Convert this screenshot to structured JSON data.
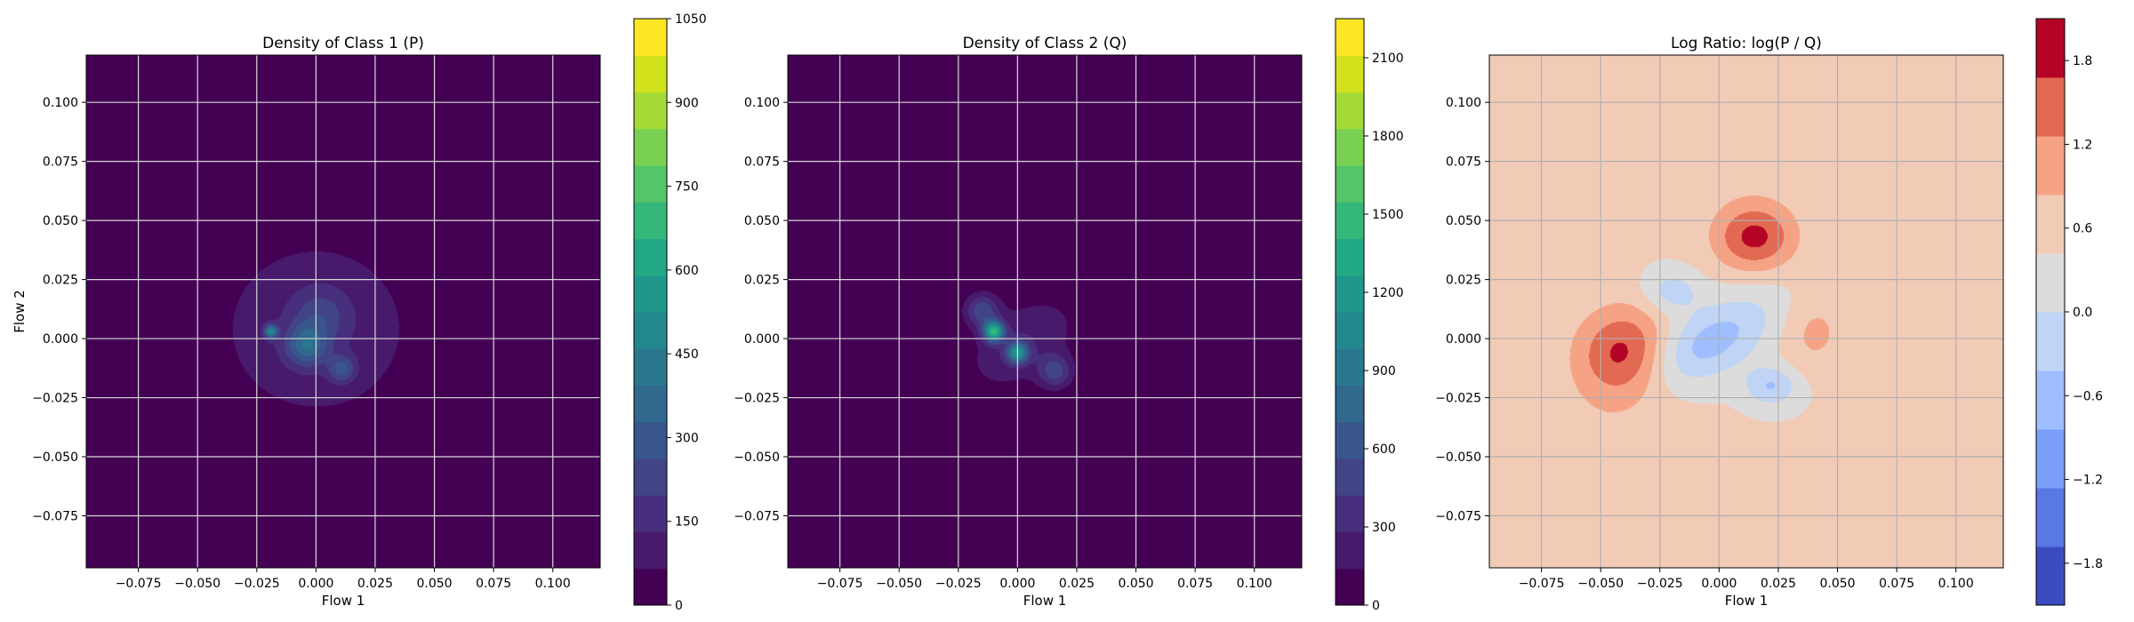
{
  "colors": {
    "viridis": [
      "#440154",
      "#481a6c",
      "#472f7d",
      "#414487",
      "#39568c",
      "#31688e",
      "#2a788e",
      "#23888e",
      "#1f988b",
      "#22a884",
      "#35b779",
      "#54c568",
      "#7ad151",
      "#a5db36",
      "#d2e21b",
      "#fde725"
    ],
    "coolwarm": [
      "#3b4cc0",
      "#5a78e4",
      "#7b9ff9",
      "#9ebeff",
      "#c0d4f5",
      "#dddcdc",
      "#f2cbb7",
      "#f6a385",
      "#e26952",
      "#b40426"
    ]
  },
  "chart_data": [
    {
      "type": "heatmap",
      "title": "Density of Class 1 (P)",
      "xlabel": "Flow 1",
      "ylabel": "Flow 2",
      "xlim": [
        -0.097,
        0.12
      ],
      "ylim": [
        -0.097,
        0.12
      ],
      "xticks": [
        "−0.075",
        "−0.050",
        "−0.025",
        "0.000",
        "0.025",
        "0.050",
        "0.075",
        "0.100"
      ],
      "yticks": [
        "−0.075",
        "−0.050",
        "−0.025",
        "0.000",
        "0.025",
        "0.050",
        "0.075",
        "0.100"
      ],
      "xtick_values": [
        -0.075,
        -0.05,
        -0.025,
        0,
        0.025,
        0.05,
        0.075,
        0.1
      ],
      "ytick_values": [
        -0.075,
        -0.05,
        -0.025,
        0,
        0.025,
        0.05,
        0.075,
        0.1
      ],
      "grid": true,
      "colormap": "viridis",
      "colorbar": {
        "min": 0,
        "max": 1050,
        "ticks": [
          "0",
          "150",
          "300",
          "450",
          "600",
          "750",
          "900",
          "1050"
        ],
        "tick_values": [
          0,
          150,
          300,
          450,
          600,
          750,
          900,
          1050
        ]
      },
      "blobs": [
        {
          "x": 0.0,
          "y": 0.004,
          "sx": 0.03,
          "sy": 0.028,
          "amp": 130
        },
        {
          "x": -0.004,
          "y": -0.003,
          "sx": 0.006,
          "sy": 0.006,
          "amp": 260
        },
        {
          "x": -0.019,
          "y": 0.003,
          "sx": 0.002,
          "sy": 0.002,
          "amp": 380
        },
        {
          "x": 0.011,
          "y": -0.013,
          "sx": 0.004,
          "sy": 0.004,
          "amp": 200
        },
        {
          "x": 0.002,
          "y": 0.01,
          "sx": 0.008,
          "sy": 0.008,
          "amp": 120
        }
      ]
    },
    {
      "type": "heatmap",
      "title": "Density of Class 2 (Q)",
      "xlabel": "Flow 1",
      "ylabel": "",
      "xlim": [
        -0.097,
        0.12
      ],
      "ylim": [
        -0.097,
        0.12
      ],
      "xticks": [
        "−0.075",
        "−0.050",
        "−0.025",
        "0.000",
        "0.025",
        "0.050",
        "0.075",
        "0.100"
      ],
      "yticks": [
        "−0.075",
        "−0.050",
        "−0.025",
        "0.000",
        "0.025",
        "0.050",
        "0.075",
        "0.100"
      ],
      "xtick_values": [
        -0.075,
        -0.05,
        -0.025,
        0,
        0.025,
        0.05,
        0.075,
        0.1
      ],
      "ytick_values": [
        -0.075,
        -0.05,
        -0.025,
        0,
        0.025,
        0.05,
        0.075,
        0.1
      ],
      "grid": true,
      "colormap": "viridis",
      "colorbar": {
        "min": 0,
        "max": 2250,
        "ticks": [
          "0",
          "300",
          "600",
          "900",
          "1200",
          "1500",
          "1800",
          "2100"
        ],
        "tick_values": [
          0,
          300,
          600,
          900,
          1200,
          1500,
          1800,
          2100
        ]
      },
      "blobs": [
        {
          "x": 0.002,
          "y": -0.002,
          "sx": 0.018,
          "sy": 0.011,
          "amp": 280,
          "rot": -0.6
        },
        {
          "x": -0.01,
          "y": 0.003,
          "sx": 0.003,
          "sy": 0.003,
          "amp": 1300
        },
        {
          "x": 0.0,
          "y": -0.006,
          "sx": 0.003,
          "sy": 0.003,
          "amp": 1000
        },
        {
          "x": -0.015,
          "y": 0.012,
          "sx": 0.005,
          "sy": 0.005,
          "amp": 500
        },
        {
          "x": 0.016,
          "y": -0.014,
          "sx": 0.005,
          "sy": 0.005,
          "amp": 450
        }
      ]
    },
    {
      "type": "heatmap",
      "title": "Log Ratio: log(P / Q)",
      "xlabel": "Flow 1",
      "ylabel": "",
      "xlim": [
        -0.097,
        0.12
      ],
      "ylim": [
        -0.097,
        0.12
      ],
      "xticks": [
        "−0.075",
        "−0.050",
        "−0.025",
        "0.000",
        "0.025",
        "0.050",
        "0.075",
        "0.100"
      ],
      "yticks": [
        "−0.075",
        "−0.050",
        "−0.025",
        "0.000",
        "0.025",
        "0.050",
        "0.075",
        "0.100"
      ],
      "xtick_values": [
        -0.075,
        -0.05,
        -0.025,
        0,
        0.025,
        0.05,
        0.075,
        0.1
      ],
      "ytick_values": [
        -0.075,
        -0.05,
        -0.025,
        0,
        0.025,
        0.05,
        0.075,
        0.1
      ],
      "grid": true,
      "colormap": "coolwarm",
      "colorbar": {
        "min": -2.1,
        "max": 2.1,
        "ticks": [
          "−1.8",
          "−1.2",
          "−0.6",
          "0.0",
          "0.6",
          "1.2",
          "1.8"
        ],
        "tick_values": [
          -1.8,
          -1.2,
          -0.6,
          0.0,
          0.6,
          1.2,
          1.8
        ]
      },
      "background": 0.45,
      "blobs": [
        {
          "x": -0.04,
          "y": -0.007,
          "sx": 0.014,
          "sy": 0.014,
          "amp": 1.4
        },
        {
          "x": 0.015,
          "y": 0.043,
          "sx": 0.012,
          "sy": 0.01,
          "amp": 1.35
        },
        {
          "x": -0.005,
          "y": -0.002,
          "sx": 0.022,
          "sy": 0.01,
          "amp": -1.1,
          "rot": -0.5
        },
        {
          "x": 0.022,
          "y": -0.02,
          "sx": 0.008,
          "sy": 0.006,
          "amp": -0.9
        },
        {
          "x": -0.02,
          "y": 0.02,
          "sx": 0.008,
          "sy": 0.006,
          "amp": -0.7
        },
        {
          "x": 0.04,
          "y": 0.003,
          "sx": 0.01,
          "sy": 0.012,
          "amp": 0.5
        },
        {
          "x": 0.01,
          "y": 0.09,
          "sx": 0.03,
          "sy": 0.02,
          "amp": 0.3
        },
        {
          "x": -0.06,
          "y": -0.05,
          "sx": 0.03,
          "sy": 0.02,
          "amp": 0.3
        }
      ]
    }
  ]
}
